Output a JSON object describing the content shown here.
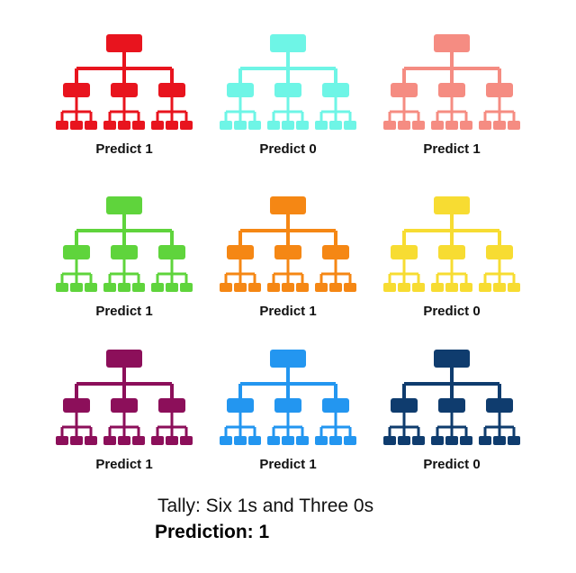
{
  "trees": [
    {
      "label": "Predict 1",
      "color": "#e8141e"
    },
    {
      "label": "Predict 0",
      "color": "#6ef5e6"
    },
    {
      "label": "Predict 1",
      "color": "#f58c82"
    },
    {
      "label": "Predict 1",
      "color": "#5fd43c"
    },
    {
      "label": "Predict 1",
      "color": "#f58714"
    },
    {
      "label": "Predict 0",
      "color": "#f7dc32"
    },
    {
      "label": "Predict 1",
      "color": "#8c0f5a"
    },
    {
      "label": "Predict 1",
      "color": "#2396f0"
    },
    {
      "label": "Predict 0",
      "color": "#0f3c6e"
    }
  ],
  "tally": "Tally: Six 1s and Three 0s",
  "prediction": "Prediction: 1"
}
